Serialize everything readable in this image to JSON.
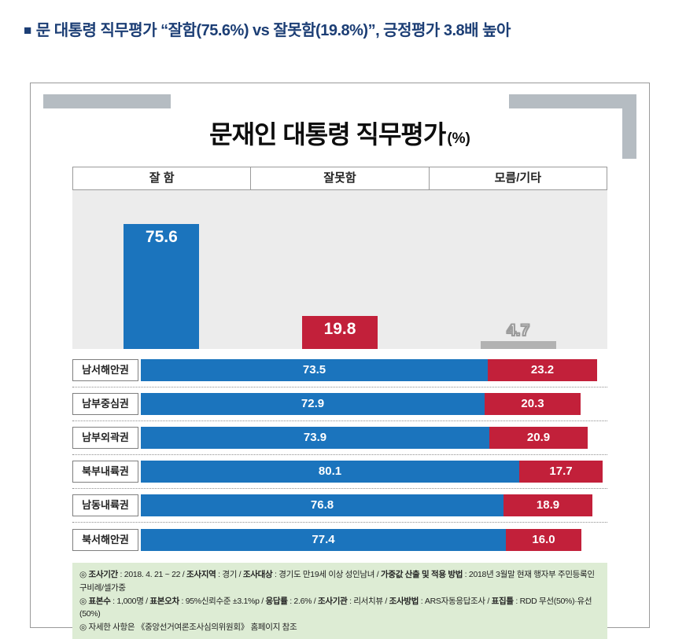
{
  "headline": {
    "bullet": "■",
    "text": "문 대통령 직무평가 “잘함(75.6%) vs 잘못함(19.8%)”, 긍정평가 3.8배 높아"
  },
  "colors": {
    "headline_navy": "#1c3e75",
    "approve_blue": "#1b74bd",
    "disapprove_red": "#c2203a",
    "unknown_gray": "#b2b2b2",
    "chart_bg": "#ececec",
    "frame_gray": "#b5bcc2",
    "footnote_green": "#ddecd4"
  },
  "chart_data": [
    {
      "type": "bar",
      "title": "문재인 대통령 직무평가",
      "unit": "(%)",
      "categories": [
        "잘 함",
        "잘못함",
        "모름/기타"
      ],
      "values": [
        75.6,
        19.8,
        4.7
      ],
      "colors": [
        "#1b74bd",
        "#c2203a",
        "#b2b2b2"
      ],
      "ylim": [
        0,
        100
      ],
      "grid": false,
      "legend_position": "top-table"
    },
    {
      "type": "bar",
      "orientation": "horizontal-stacked",
      "categories": [
        "남서해안권",
        "남부중심권",
        "남부외곽권",
        "북부내륙권",
        "남동내륙권",
        "북서해안권"
      ],
      "series": [
        {
          "name": "잘함",
          "color": "#1b74bd",
          "values": [
            73.5,
            72.9,
            73.9,
            80.1,
            76.8,
            77.4
          ]
        },
        {
          "name": "잘못함",
          "color": "#c2203a",
          "values": [
            23.2,
            20.3,
            20.9,
            17.7,
            18.9,
            16.0
          ]
        }
      ],
      "xlim": [
        0,
        100
      ],
      "grid": false
    }
  ],
  "footnote": {
    "lines": [
      [
        {
          "b": 1,
          "t": "◎ 조사기간"
        },
        {
          "b": 0,
          "t": " : 2018. 4. 21 ~ 22 / "
        },
        {
          "b": 1,
          "t": "조사지역"
        },
        {
          "b": 0,
          "t": " : 경기 / "
        },
        {
          "b": 1,
          "t": "조사대상"
        },
        {
          "b": 0,
          "t": " : 경기도 만19세 이상 성인남녀 / "
        },
        {
          "b": 1,
          "t": "가중값 산출 및 적용 방법"
        },
        {
          "b": 0,
          "t": " : 2018년 3월말 현재 행자부 주민등록인구비례/셀가중"
        }
      ],
      [
        {
          "b": 1,
          "t": "◎ 표본수"
        },
        {
          "b": 0,
          "t": " : 1,000명 / "
        },
        {
          "b": 1,
          "t": "표본오차"
        },
        {
          "b": 0,
          "t": " : 95%신뢰수준 ±3.1%p / "
        },
        {
          "b": 1,
          "t": "응답률"
        },
        {
          "b": 0,
          "t": " : 2.6% / "
        },
        {
          "b": 1,
          "t": "조사기관"
        },
        {
          "b": 0,
          "t": " : 리서치뷰 / "
        },
        {
          "b": 1,
          "t": "조사방법"
        },
        {
          "b": 0,
          "t": " : ARS자동응답조사 / "
        },
        {
          "b": 1,
          "t": "표집틀"
        },
        {
          "b": 0,
          "t": " : RDD 무선(50%)·유선(50%)"
        }
      ],
      [
        {
          "b": 0,
          "t": "◎ 자세한 사항은 《중앙선거여론조사심의위원회》 홈페이지 참조"
        }
      ]
    ]
  }
}
